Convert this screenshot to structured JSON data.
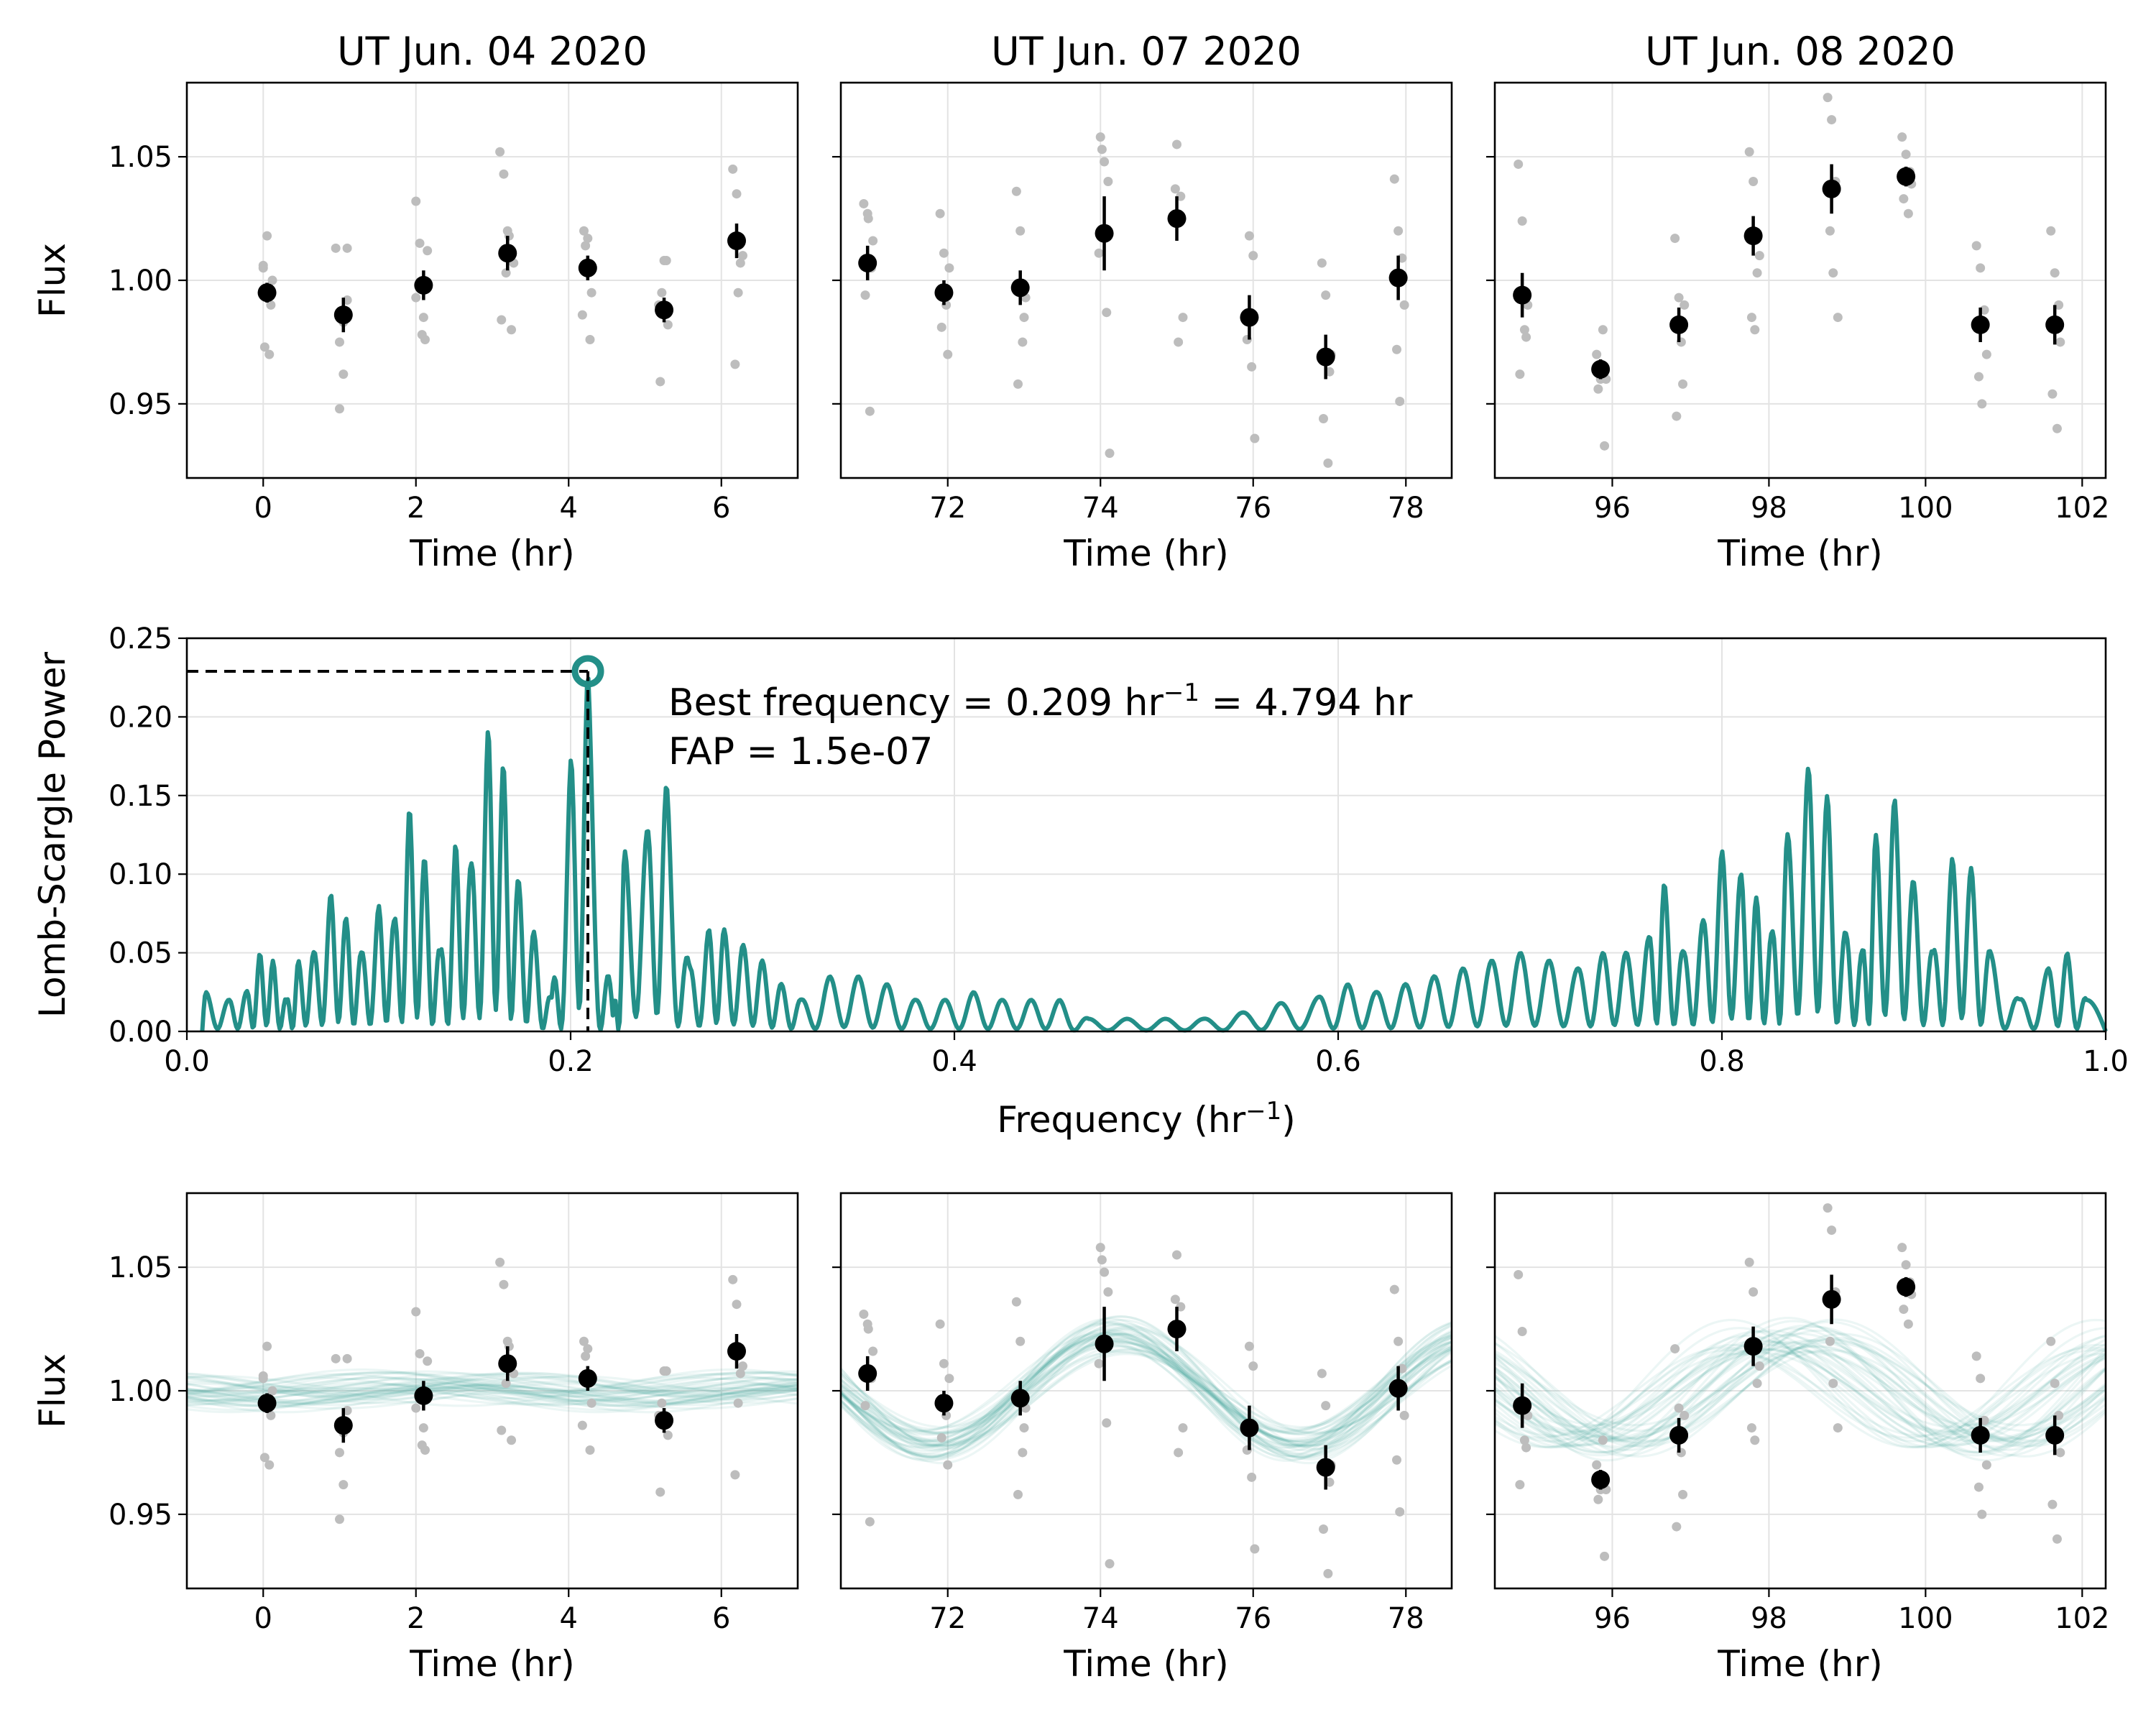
{
  "chart_data": {
    "type": "multi-panel",
    "light_curve_panels": [
      {
        "title": "UT Jun. 04 2020",
        "xlim": [
          -1.0,
          7.0
        ],
        "xticks": [
          0,
          2,
          4,
          6
        ],
        "bins": {
          "x": [
            0.05,
            1.05,
            2.1,
            3.2,
            4.25,
            5.25,
            6.2
          ],
          "y": [
            0.995,
            0.986,
            0.998,
            1.011,
            1.005,
            0.988,
            1.016
          ],
          "err": [
            0.004,
            0.007,
            0.006,
            0.007,
            0.005,
            0.005,
            0.007
          ]
        },
        "raw": {
          "x": [
            0.0,
            0.05,
            0.1,
            0.02,
            0.08,
            0.12,
            0.0,
            0.06,
            0.95,
            1.0,
            1.05,
            1.1,
            1.0,
            1.1,
            1.05,
            2.0,
            2.05,
            2.1,
            2.15,
            2.08,
            2.12,
            2.0,
            3.1,
            3.15,
            3.2,
            3.25,
            3.18,
            3.12,
            3.22,
            3.28,
            4.2,
            4.25,
            4.3,
            4.22,
            4.18,
            4.28,
            5.2,
            5.25,
            5.3,
            5.22,
            5.18,
            5.28,
            6.15,
            6.2,
            6.25,
            6.22,
            6.18,
            6.28
          ],
          "y": [
            1.005,
            1.018,
            0.99,
            0.973,
            0.97,
            1.0,
            1.006,
            0.993,
            1.013,
            0.948,
            0.962,
            0.992,
            0.975,
            1.013,
            0.983,
            1.032,
            1.015,
            0.985,
            1.012,
            0.978,
            0.976,
            0.993,
            1.052,
            1.043,
            1.02,
            0.98,
            1.003,
            0.984,
            1.018,
            1.007,
            1.02,
            1.017,
            0.995,
            1.014,
            0.986,
            0.976,
            0.959,
            1.008,
            0.982,
            0.995,
            0.99,
            1.008,
            1.045,
            1.035,
            1.007,
            0.995,
            0.966,
            1.01
          ]
        }
      },
      {
        "title": "UT Jun. 07 2020",
        "xlim": [
          70.6,
          78.6
        ],
        "xticks": [
          72,
          74,
          76,
          78
        ],
        "bins": {
          "x": [
            70.95,
            71.95,
            72.95,
            74.05,
            75.0,
            75.95,
            76.95,
            77.9
          ],
          "y": [
            1.007,
            0.995,
            0.997,
            1.019,
            1.025,
            0.985,
            0.969,
            1.001
          ],
          "err": [
            0.007,
            0.005,
            0.007,
            0.015,
            0.009,
            0.009,
            0.009,
            0.009
          ]
        },
        "raw": {
          "x": [
            70.9,
            70.95,
            71.0,
            70.92,
            70.98,
            71.02,
            70.96,
            71.9,
            71.95,
            72.0,
            71.92,
            71.98,
            72.02,
            72.9,
            72.95,
            73.0,
            72.92,
            72.98,
            73.02,
            74.0,
            74.05,
            74.1,
            74.02,
            74.08,
            74.12,
            73.98,
            75.0,
            75.05,
            74.98,
            75.02,
            75.08,
            75.95,
            76.0,
            75.92,
            75.98,
            76.02,
            76.9,
            76.95,
            77.0,
            76.92,
            76.98,
            77.02,
            77.85,
            77.9,
            77.95,
            77.88,
            77.92,
            77.98
          ],
          "y": [
            1.031,
            1.027,
            1.005,
            0.994,
            0.947,
            1.016,
            1.025,
            1.027,
            1.011,
            0.97,
            0.981,
            0.99,
            1.005,
            1.036,
            1.02,
            0.985,
            0.958,
            0.975,
            0.993,
            1.058,
            1.048,
            1.04,
            1.053,
            0.987,
            0.93,
            1.011,
            1.055,
            1.034,
            1.037,
            0.975,
            0.985,
            1.018,
            1.01,
            0.976,
            0.965,
            0.936,
            1.007,
            0.994,
            0.963,
            0.944,
            0.926,
            0.97,
            1.041,
            1.02,
            1.009,
            0.972,
            0.951,
            0.99
          ]
        }
      },
      {
        "title": "UT Jun. 08 2020",
        "xlim": [
          94.5,
          102.3
        ],
        "xticks": [
          96,
          98,
          100,
          102
        ],
        "bins": {
          "x": [
            94.85,
            95.85,
            96.85,
            97.8,
            98.8,
            99.75,
            100.7,
            101.65
          ],
          "y": [
            0.994,
            0.964,
            0.982,
            1.018,
            1.037,
            1.042,
            0.982,
            0.982
          ],
          "err": [
            0.009,
            0.004,
            0.007,
            0.008,
            0.01,
            0.004,
            0.007,
            0.008
          ]
        },
        "raw": {
          "x": [
            94.8,
            94.85,
            94.9,
            94.82,
            94.88,
            94.92,
            95.8,
            95.85,
            95.9,
            95.82,
            95.88,
            95.92,
            96.8,
            96.85,
            96.9,
            96.82,
            96.88,
            96.92,
            97.75,
            97.8,
            97.85,
            97.78,
            97.82,
            97.88,
            98.75,
            98.8,
            98.85,
            98.78,
            98.82,
            98.88,
            99.7,
            99.75,
            99.8,
            99.72,
            99.78,
            99.82,
            100.65,
            100.7,
            100.75,
            100.68,
            100.72,
            100.78,
            101.6,
            101.65,
            101.7,
            101.62,
            101.68,
            101.72
          ],
          "y": [
            1.047,
            1.024,
            0.977,
            0.962,
            0.98,
            0.99,
            0.97,
            0.96,
            0.933,
            0.956,
            0.98,
            0.96,
            1.017,
            0.993,
            0.958,
            0.945,
            0.975,
            0.99,
            1.052,
            1.04,
            1.003,
            0.985,
            0.98,
            1.01,
            1.074,
            1.065,
            1.04,
            1.02,
            1.003,
            0.985,
            1.058,
            1.051,
            1.044,
            1.033,
            1.027,
            1.039,
            1.014,
            1.005,
            0.988,
            0.961,
            0.95,
            0.97,
            1.02,
            1.003,
            0.99,
            0.954,
            0.94,
            0.975
          ]
        }
      }
    ],
    "flux_ylim": [
      0.92,
      1.08
    ],
    "flux_yticks": [
      "0.95",
      "1.00",
      "1.05"
    ],
    "flux_ylabel": "Flux",
    "time_xlabel": "Time (hr)",
    "periodogram": {
      "type": "line",
      "xlabel": "Frequency (hr⁻¹)",
      "ylabel": "Lomb-Scargle Power",
      "xlim": [
        0.0,
        1.0
      ],
      "ylim": [
        0.0,
        0.25
      ],
      "xticks": [
        "0.0",
        "0.2",
        "0.4",
        "0.6",
        "0.8",
        "1.0"
      ],
      "yticks": [
        "0.00",
        "0.05",
        "0.10",
        "0.15",
        "0.20",
        "0.25"
      ],
      "peaks": [
        [
          0.01,
          0.025
        ],
        [
          0.022,
          0.02
        ],
        [
          0.031,
          0.025
        ],
        [
          0.038,
          0.05
        ],
        [
          0.045,
          0.045
        ],
        [
          0.052,
          0.02
        ],
        [
          0.058,
          0.045
        ],
        [
          0.066,
          0.05
        ],
        [
          0.075,
          0.088
        ],
        [
          0.083,
          0.072
        ],
        [
          0.091,
          0.05
        ],
        [
          0.1,
          0.08
        ],
        [
          0.108,
          0.07
        ],
        [
          0.116,
          0.143
        ],
        [
          0.124,
          0.11
        ],
        [
          0.132,
          0.05
        ],
        [
          0.14,
          0.12
        ],
        [
          0.148,
          0.105
        ],
        [
          0.157,
          0.193
        ],
        [
          0.165,
          0.17
        ],
        [
          0.173,
          0.095
        ],
        [
          0.181,
          0.063
        ],
        [
          0.19,
          0.02
        ],
        [
          0.2,
          0.172
        ],
        [
          0.209,
          0.229
        ],
        [
          0.222,
          0.01
        ],
        [
          0.228,
          0.115
        ],
        [
          0.24,
          0.128
        ],
        [
          0.25,
          0.158
        ],
        [
          0.262,
          0.04
        ],
        [
          0.272,
          0.065
        ],
        [
          0.28,
          0.065
        ],
        [
          0.29,
          0.055
        ],
        [
          0.3,
          0.045
        ],
        [
          0.31,
          0.03
        ],
        [
          0.32,
          0.02
        ],
        [
          0.335,
          0.035
        ],
        [
          0.35,
          0.035
        ],
        [
          0.365,
          0.03
        ],
        [
          0.38,
          0.02
        ],
        [
          0.395,
          0.02
        ],
        [
          0.41,
          0.025
        ],
        [
          0.425,
          0.02
        ],
        [
          0.44,
          0.02
        ],
        [
          0.455,
          0.02
        ],
        [
          0.47,
          0.008
        ],
        [
          0.49,
          0.008
        ],
        [
          0.51,
          0.008
        ],
        [
          0.53,
          0.008
        ],
        [
          0.55,
          0.012
        ],
        [
          0.57,
          0.018
        ],
        [
          0.59,
          0.022
        ],
        [
          0.605,
          0.03
        ],
        [
          0.62,
          0.025
        ],
        [
          0.635,
          0.03
        ],
        [
          0.65,
          0.035
        ],
        [
          0.665,
          0.04
        ],
        [
          0.68,
          0.045
        ],
        [
          0.695,
          0.05
        ],
        [
          0.71,
          0.045
        ],
        [
          0.725,
          0.04
        ],
        [
          0.738,
          0.05
        ],
        [
          0.75,
          0.05
        ],
        [
          0.762,
          0.06
        ],
        [
          0.77,
          0.095
        ],
        [
          0.78,
          0.05
        ],
        [
          0.79,
          0.07
        ],
        [
          0.8,
          0.115
        ],
        [
          0.81,
          0.1
        ],
        [
          0.818,
          0.085
        ],
        [
          0.826,
          0.062
        ],
        [
          0.834,
          0.125
        ],
        [
          0.845,
          0.168
        ],
        [
          0.855,
          0.15
        ],
        [
          0.865,
          0.06
        ],
        [
          0.873,
          0.05
        ],
        [
          0.88,
          0.125
        ],
        [
          0.89,
          0.148
        ],
        [
          0.9,
          0.095
        ],
        [
          0.91,
          0.05
        ],
        [
          0.92,
          0.11
        ],
        [
          0.93,
          0.104
        ],
        [
          0.94,
          0.05
        ],
        [
          0.955,
          0.02
        ],
        [
          0.97,
          0.04
        ],
        [
          0.98,
          0.05
        ],
        [
          0.99,
          0.02
        ]
      ],
      "best_frequency": 0.209,
      "best_power": 0.229,
      "annotation_line1_prefix": "Best frequency = 0.209 hr",
      "annotation_line1_exp": "−1",
      "annotation_line1_suffix": " = 4.794 hr",
      "annotation_line2": "FAP = 1.5e-07"
    },
    "sine_model": {
      "period_hr": 4.794,
      "amplitude": 0.022,
      "phase_ref_hr": 74.2,
      "n_draws": 40
    },
    "colors": {
      "raw": "#bdbdbd",
      "binned": "#000000",
      "model": "#238f88",
      "grid": "#e3e3e3"
    }
  },
  "labels": {
    "freq_xlabel_base": "Frequency (hr",
    "freq_xlabel_exp": "−1",
    "freq_xlabel_close": ")"
  }
}
